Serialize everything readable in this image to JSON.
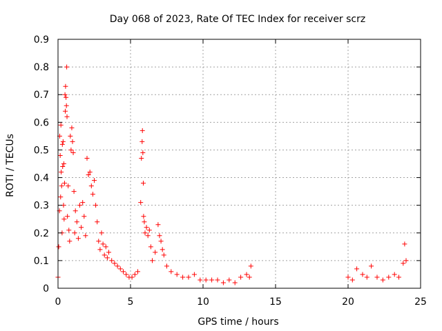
{
  "chart_data": {
    "type": "scatter",
    "title": "Day 068 of 2023, Rate Of TEC Index for receiver scrz",
    "xlabel": "GPS time / hours",
    "ylabel": "ROTI / TECUs",
    "xlim": [
      0,
      25
    ],
    "ylim": [
      0,
      0.9
    ],
    "xticks": [
      0,
      5,
      10,
      15,
      20,
      25
    ],
    "xtick_labels": [
      "0",
      "5",
      "10",
      "15",
      "20",
      "25"
    ],
    "yticks": [
      0,
      0.1,
      0.2,
      0.3,
      0.4,
      0.5,
      0.6,
      0.7,
      0.8,
      0.9
    ],
    "ytick_labels": [
      "0",
      "0.1",
      "0.2",
      "0.3",
      "0.4",
      "0.5",
      "0.6",
      "0.7",
      "0.8",
      "0.9"
    ],
    "grid": true,
    "marker": "+",
    "series": [
      {
        "name": "ROTI",
        "color": "#ff0000",
        "points": [
          [
            0.0,
            0.04
          ],
          [
            0.05,
            0.15
          ],
          [
            0.1,
            0.28
          ],
          [
            0.12,
            0.55
          ],
          [
            0.15,
            0.48
          ],
          [
            0.18,
            0.33
          ],
          [
            0.2,
            0.59
          ],
          [
            0.22,
            0.42
          ],
          [
            0.25,
            0.37
          ],
          [
            0.28,
            0.2
          ],
          [
            0.3,
            0.52
          ],
          [
            0.32,
            0.44
          ],
          [
            0.35,
            0.53
          ],
          [
            0.38,
            0.3
          ],
          [
            0.4,
            0.45
          ],
          [
            0.42,
            0.25
          ],
          [
            0.45,
            0.38
          ],
          [
            0.48,
            0.7
          ],
          [
            0.5,
            0.64
          ],
          [
            0.52,
            0.73
          ],
          [
            0.55,
            0.69
          ],
          [
            0.58,
            0.66
          ],
          [
            0.6,
            0.8
          ],
          [
            0.62,
            0.62
          ],
          [
            0.65,
            0.26
          ],
          [
            0.7,
            0.37
          ],
          [
            0.75,
            0.21
          ],
          [
            0.8,
            0.17
          ],
          [
            0.85,
            0.55
          ],
          [
            0.9,
            0.5
          ],
          [
            0.95,
            0.58
          ],
          [
            1.0,
            0.53
          ],
          [
            1.05,
            0.49
          ],
          [
            1.1,
            0.35
          ],
          [
            1.15,
            0.2
          ],
          [
            1.2,
            0.28
          ],
          [
            1.3,
            0.24
          ],
          [
            1.4,
            0.18
          ],
          [
            1.5,
            0.3
          ],
          [
            1.6,
            0.22
          ],
          [
            1.7,
            0.31
          ],
          [
            1.8,
            0.26
          ],
          [
            1.9,
            0.19
          ],
          [
            2.0,
            0.47
          ],
          [
            2.1,
            0.41
          ],
          [
            2.2,
            0.42
          ],
          [
            2.3,
            0.37
          ],
          [
            2.4,
            0.34
          ],
          [
            2.5,
            0.39
          ],
          [
            2.6,
            0.3
          ],
          [
            2.7,
            0.24
          ],
          [
            2.8,
            0.17
          ],
          [
            2.9,
            0.14
          ],
          [
            3.0,
            0.2
          ],
          [
            3.1,
            0.16
          ],
          [
            3.2,
            0.12
          ],
          [
            3.3,
            0.15
          ],
          [
            3.4,
            0.11
          ],
          [
            3.5,
            0.13
          ],
          [
            3.7,
            0.1
          ],
          [
            3.9,
            0.09
          ],
          [
            4.1,
            0.08
          ],
          [
            4.3,
            0.07
          ],
          [
            4.5,
            0.06
          ],
          [
            4.7,
            0.05
          ],
          [
            4.9,
            0.04
          ],
          [
            5.1,
            0.04
          ],
          [
            5.3,
            0.05
          ],
          [
            5.5,
            0.06
          ],
          [
            5.7,
            0.31
          ],
          [
            5.75,
            0.47
          ],
          [
            5.8,
            0.53
          ],
          [
            5.82,
            0.57
          ],
          [
            5.85,
            0.49
          ],
          [
            5.88,
            0.38
          ],
          [
            5.9,
            0.26
          ],
          [
            5.95,
            0.24
          ],
          [
            6.0,
            0.2
          ],
          [
            6.1,
            0.22
          ],
          [
            6.2,
            0.19
          ],
          [
            6.3,
            0.21
          ],
          [
            6.4,
            0.15
          ],
          [
            6.5,
            0.1
          ],
          [
            6.7,
            0.13
          ],
          [
            6.9,
            0.23
          ],
          [
            7.0,
            0.19
          ],
          [
            7.1,
            0.17
          ],
          [
            7.2,
            0.14
          ],
          [
            7.3,
            0.12
          ],
          [
            7.5,
            0.08
          ],
          [
            7.8,
            0.06
          ],
          [
            8.2,
            0.05
          ],
          [
            8.6,
            0.04
          ],
          [
            9.0,
            0.04
          ],
          [
            9.4,
            0.05
          ],
          [
            9.8,
            0.03
          ],
          [
            10.2,
            0.03
          ],
          [
            10.6,
            0.03
          ],
          [
            11.0,
            0.03
          ],
          [
            11.4,
            0.02
          ],
          [
            11.8,
            0.03
          ],
          [
            12.2,
            0.02
          ],
          [
            12.6,
            0.04
          ],
          [
            13.0,
            0.05
          ],
          [
            13.2,
            0.04
          ],
          [
            13.3,
            0.08
          ],
          [
            20.0,
            0.04
          ],
          [
            20.3,
            0.03
          ],
          [
            20.6,
            0.07
          ],
          [
            21.0,
            0.05
          ],
          [
            21.3,
            0.04
          ],
          [
            21.6,
            0.08
          ],
          [
            22.0,
            0.04
          ],
          [
            22.4,
            0.03
          ],
          [
            22.8,
            0.04
          ],
          [
            23.2,
            0.05
          ],
          [
            23.5,
            0.04
          ],
          [
            23.8,
            0.09
          ],
          [
            23.9,
            0.16
          ],
          [
            24.0,
            0.1
          ]
        ]
      }
    ]
  }
}
